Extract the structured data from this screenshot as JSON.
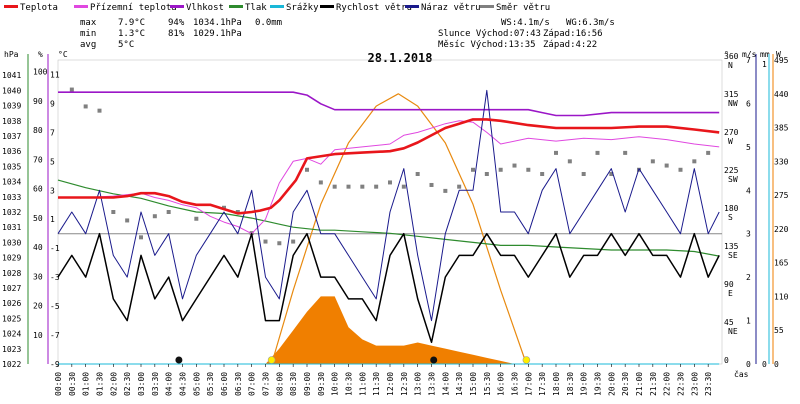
{
  "legend": [
    {
      "label": "Teplota",
      "color": "#e8161b"
    },
    {
      "label": "Přízemní teplota",
      "color": "#e048e0"
    },
    {
      "label": "Vlhkost",
      "color": "#9b16c7"
    },
    {
      "label": "Tlak",
      "color": "#2e8b2e"
    },
    {
      "label": "Srážky",
      "color": "#1ab8d8"
    },
    {
      "label": "Rychlost větru",
      "color": "#000000"
    },
    {
      "label": "Náraz větru",
      "color": "#1a1a8c"
    },
    {
      "label": "Směr větru",
      "color": "#808080"
    }
  ],
  "stats": {
    "max_label": "max",
    "min_label": "min",
    "avg_label": "avg",
    "max_temp": "7.9°C",
    "max_hum": "94%",
    "max_press": "1034.1hPa",
    "max_rain": "0.0mm",
    "min_temp": "1.3°C",
    "min_hum": "81%",
    "min_press": "1029.1hPa",
    "avg_temp": "5°C"
  },
  "wind_info": {
    "ws": "WS:4.1m/s",
    "wg": "WG:6.3m/s"
  },
  "sun": {
    "rise": "Slunce Východ:07:43",
    "set": "Západ:16:56"
  },
  "moon": {
    "rise": "Měsíc  Východ:13:35",
    "set": "Západ:4:22"
  },
  "colors": {
    "temp": "#e8161b",
    "ground": "#e048e0",
    "hum": "#9b16c7",
    "press": "#2e8b2e",
    "rain": "#1ab8d8",
    "wind": "#000000",
    "gust": "#1a1a8c",
    "dir": "#808080",
    "sun_arc": "#e88a10",
    "rad": "#f07f00",
    "sun_marker": "#ffee00"
  },
  "chart_data": {
    "type": "line",
    "title": "28.1.2018",
    "xlabel": "čas",
    "x_ticks": [
      "00:00",
      "00:30",
      "01:00",
      "01:30",
      "02:00",
      "02:30",
      "03:00",
      "03:30",
      "04:00",
      "04:30",
      "05:00",
      "05:30",
      "06:00",
      "06:30",
      "07:00",
      "07:30",
      "08:00",
      "08:30",
      "09:00",
      "09:30",
      "10:00",
      "10:30",
      "11:00",
      "11:30",
      "12:00",
      "12:30",
      "13:00",
      "13:30",
      "14:00",
      "14:30",
      "15:00",
      "15:30",
      "16:00",
      "16:30",
      "17:00",
      "17:30",
      "18:00",
      "18:30",
      "19:00",
      "19:30",
      "20:00",
      "20:30",
      "21:00",
      "21:30",
      "22:00",
      "22:30",
      "23:00",
      "23:30"
    ],
    "axes": {
      "hpa": {
        "label": "hPa",
        "ticks": [
          "1041",
          "1040",
          "1039",
          "1038",
          "1037",
          "1036",
          "1035",
          "1034",
          "1033",
          "1032",
          "1031",
          "1030",
          "1029",
          "1028",
          "1027",
          "1026",
          "1025",
          "1024",
          "1023",
          "1022"
        ]
      },
      "pct": {
        "label": "%",
        "ticks": [
          "100",
          "90",
          "80",
          "70",
          "60",
          "50",
          "40",
          "30",
          "20",
          "10"
        ]
      },
      "temp": {
        "label": "°C",
        "ticks": [
          "11",
          "9",
          "7",
          "5",
          "3",
          "1",
          "-1",
          "-3",
          "-5",
          "-7",
          "-9"
        ]
      },
      "dir": {
        "label": "°",
        "ticks": [
          "360",
          "315",
          "270",
          "225",
          "180",
          "135",
          "90",
          "45",
          "0"
        ],
        "names": [
          "N",
          "NW",
          "W",
          "SW",
          "S",
          "SE",
          "E",
          "NE"
        ]
      },
      "ms": {
        "label": "m/s",
        "ticks": [
          "7",
          "6",
          "5",
          "4",
          "3",
          "2",
          "1",
          "0"
        ]
      },
      "mm": {
        "label": "mm",
        "ticks": [
          "1",
          "0"
        ]
      },
      "wm2": {
        "label": "W",
        "ticks": [
          "495",
          "440",
          "385",
          "330",
          "275",
          "220",
          "165",
          "110",
          "55",
          "0"
        ]
      }
    },
    "series": [
      {
        "name": "Teplota",
        "unit": "°C",
        "x": [
          0,
          1,
          2,
          2.5,
          3,
          3.5,
          4,
          4.5,
          5,
          5.5,
          6,
          6.5,
          7,
          7.3,
          7.7,
          8,
          8.3,
          8.6,
          9,
          10,
          11,
          12,
          12.5,
          13,
          14,
          14.5,
          15,
          15.5,
          16,
          17,
          18,
          19,
          20,
          21,
          22,
          23,
          23.9
        ],
        "values": [
          2.5,
          2.5,
          2.5,
          2.6,
          2.8,
          2.8,
          2.6,
          2.2,
          2.0,
          2.0,
          1.7,
          1.4,
          1.5,
          1.6,
          1.8,
          2.3,
          3.0,
          3.7,
          5.2,
          5.5,
          5.6,
          5.7,
          5.9,
          6.3,
          7.3,
          7.6,
          7.9,
          7.9,
          7.8,
          7.5,
          7.3,
          7.3,
          7.3,
          7.4,
          7.4,
          7.2,
          7.0
        ]
      },
      {
        "name": "Přízemní teplota",
        "unit": "°C",
        "x": [
          0,
          1,
          2,
          2.5,
          3,
          3.5,
          4,
          4.5,
          5,
          5.5,
          6,
          6.5,
          7,
          7.5,
          8,
          8.5,
          9,
          9.5,
          10,
          11,
          12,
          12.5,
          13,
          14,
          14.5,
          15,
          15.5,
          16,
          17,
          18,
          19,
          20,
          21,
          22,
          23,
          23.9
        ],
        "values": [
          2.5,
          2.5,
          2.6,
          2.7,
          2.8,
          2.5,
          2.3,
          2.0,
          1.8,
          1.2,
          0.8,
          0.5,
          0.0,
          1.0,
          3.5,
          5.0,
          5.2,
          4.8,
          5.8,
          6.0,
          6.2,
          6.8,
          7.0,
          7.6,
          7.8,
          7.7,
          7.0,
          6.2,
          6.6,
          6.4,
          6.6,
          6.5,
          6.7,
          6.5,
          6.2,
          6.0
        ]
      },
      {
        "name": "Vlhkost",
        "unit": "%",
        "x": [
          0,
          1,
          2,
          3,
          4,
          5,
          6,
          7,
          8,
          8.5,
          9,
          9.5,
          10,
          11,
          12,
          13,
          14,
          15,
          16,
          17,
          17.5,
          18,
          19,
          20,
          21,
          22,
          23,
          23.9
        ],
        "values": [
          93,
          93,
          93,
          93,
          93,
          93,
          93,
          93,
          93,
          93,
          92,
          89,
          87,
          87,
          87,
          87,
          87,
          87,
          87,
          87,
          86,
          85,
          85,
          86,
          86,
          86,
          86,
          86
        ]
      },
      {
        "name": "Tlak",
        "unit": "hPa",
        "x": [
          0,
          1,
          2,
          3,
          4,
          5,
          6,
          7,
          7.5,
          8,
          8.5,
          9,
          9.5,
          10,
          11,
          12,
          13,
          14,
          15,
          16,
          17,
          18,
          19,
          20,
          21,
          22,
          23,
          23.9
        ],
        "values": [
          1034.1,
          1033.6,
          1033.2,
          1032.9,
          1032.4,
          1032.0,
          1031.9,
          1031.6,
          1031.4,
          1031.2,
          1031.0,
          1030.9,
          1030.8,
          1030.8,
          1030.7,
          1030.6,
          1030.4,
          1030.2,
          1030.0,
          1029.8,
          1029.8,
          1029.7,
          1029.6,
          1029.5,
          1029.5,
          1029.5,
          1029.4,
          1029.1
        ]
      },
      {
        "name": "Srážky",
        "unit": "mm",
        "x": [
          0,
          23.9
        ],
        "values": [
          0,
          0
        ]
      },
      {
        "name": "Rychlost větru",
        "unit": "m/s",
        "x": [
          0,
          0.5,
          1,
          1.5,
          2,
          2.5,
          3,
          3.5,
          4,
          4.5,
          5,
          5.5,
          6,
          6.5,
          7,
          7.5,
          8,
          8.5,
          9,
          9.5,
          10,
          10.5,
          11,
          11.5,
          12,
          12.5,
          13,
          13.5,
          14,
          14.5,
          15,
          15.5,
          16,
          16.5,
          17,
          17.5,
          18,
          18.5,
          19,
          19.5,
          20,
          20.5,
          21,
          21.5,
          22,
          22.5,
          23,
          23.5,
          23.9
        ],
        "values": [
          2.0,
          2.5,
          2.0,
          3.0,
          1.5,
          1.0,
          2.5,
          1.5,
          2.0,
          1.0,
          1.5,
          2.0,
          2.5,
          2.0,
          3.0,
          1.0,
          1.0,
          2.5,
          3.0,
          2.0,
          2.0,
          1.5,
          1.5,
          1.0,
          2.5,
          3.0,
          1.5,
          0.5,
          2.0,
          2.5,
          2.5,
          3.0,
          2.5,
          2.5,
          2.0,
          2.5,
          3.0,
          2.0,
          2.5,
          2.5,
          3.0,
          2.5,
          3.0,
          2.5,
          2.5,
          2.0,
          3.0,
          2.0,
          2.5
        ]
      },
      {
        "name": "Náraz větru",
        "unit": "m/s",
        "x": [
          0,
          0.5,
          1,
          1.5,
          2,
          2.5,
          3,
          3.5,
          4,
          4.5,
          5,
          5.5,
          6,
          6.5,
          7,
          7.5,
          8,
          8.5,
          9,
          9.5,
          10,
          10.5,
          11,
          11.5,
          12,
          12.5,
          13,
          13.5,
          14,
          14.5,
          15,
          15.5,
          16,
          16.5,
          17,
          17.5,
          18,
          18.5,
          19,
          19.5,
          20,
          20.5,
          21,
          21.5,
          22,
          22.5,
          23,
          23.5,
          23.9
        ],
        "values": [
          3.0,
          3.5,
          3.0,
          4.0,
          2.5,
          2.0,
          3.5,
          2.5,
          3.0,
          1.5,
          2.5,
          3.0,
          3.5,
          3.0,
          4.0,
          2.0,
          1.5,
          3.5,
          4.0,
          3.0,
          3.0,
          2.5,
          2.0,
          1.5,
          3.5,
          4.5,
          2.5,
          1.0,
          3.0,
          4.0,
          4.0,
          6.3,
          3.5,
          3.5,
          3.0,
          4.0,
          4.5,
          3.0,
          3.5,
          4.0,
          4.5,
          3.5,
          4.5,
          4.0,
          3.5,
          3.0,
          4.5,
          3.0,
          3.5
        ]
      },
      {
        "name": "Směr větru",
        "unit": "°",
        "x": [
          0.5,
          1,
          1.5,
          2,
          2.5,
          3,
          3.5,
          4,
          5,
          6,
          6.5,
          7,
          7.5,
          8,
          8.5,
          9,
          9.5,
          10,
          10.5,
          11,
          11.5,
          12,
          12.5,
          13,
          13.5,
          14,
          14.5,
          15,
          15.5,
          16,
          16.5,
          17,
          17.5,
          18,
          18.5,
          19,
          19.5,
          20,
          20.5,
          21,
          21.5,
          22,
          22.5,
          23,
          23.5
        ],
        "values": [
          325,
          305,
          300,
          180,
          170,
          150,
          175,
          180,
          172,
          185,
          180,
          155,
          145,
          143,
          145,
          230,
          215,
          210,
          210,
          210,
          210,
          215,
          210,
          225,
          212,
          205,
          210,
          230,
          225,
          230,
          235,
          230,
          225,
          250,
          240,
          225,
          250,
          225,
          250,
          230,
          240,
          235,
          230,
          240,
          250
        ]
      },
      {
        "name": "Sluneční záření",
        "unit": "W/m²",
        "x": [
          7.5,
          8,
          8.5,
          9,
          9.5,
          10,
          10.5,
          11,
          11.5,
          12,
          12.5,
          13,
          13.5,
          14,
          14.5,
          15,
          15.5,
          16,
          16.5
        ],
        "values": [
          0,
          25,
          55,
          85,
          110,
          110,
          60,
          40,
          30,
          30,
          30,
          35,
          30,
          25,
          20,
          15,
          10,
          5,
          0
        ]
      },
      {
        "name": "Teoretické záření",
        "unit": "W/m²",
        "x": [
          7.72,
          8.5,
          9.5,
          10.5,
          11.5,
          12.3,
          13,
          14,
          15,
          16,
          16.93
        ],
        "values": [
          0,
          120,
          260,
          360,
          420,
          440,
          420,
          360,
          260,
          120,
          0
        ]
      }
    ],
    "yranges": {
      "hpa": [
        1022,
        1042
      ],
      "pct": [
        0,
        104
      ],
      "temp": [
        -9,
        12
      ],
      "dir": [
        0,
        360
      ],
      "ms": [
        0,
        7
      ],
      "wm2": [
        0,
        495
      ]
    },
    "grid": false,
    "legend_position": "top"
  }
}
